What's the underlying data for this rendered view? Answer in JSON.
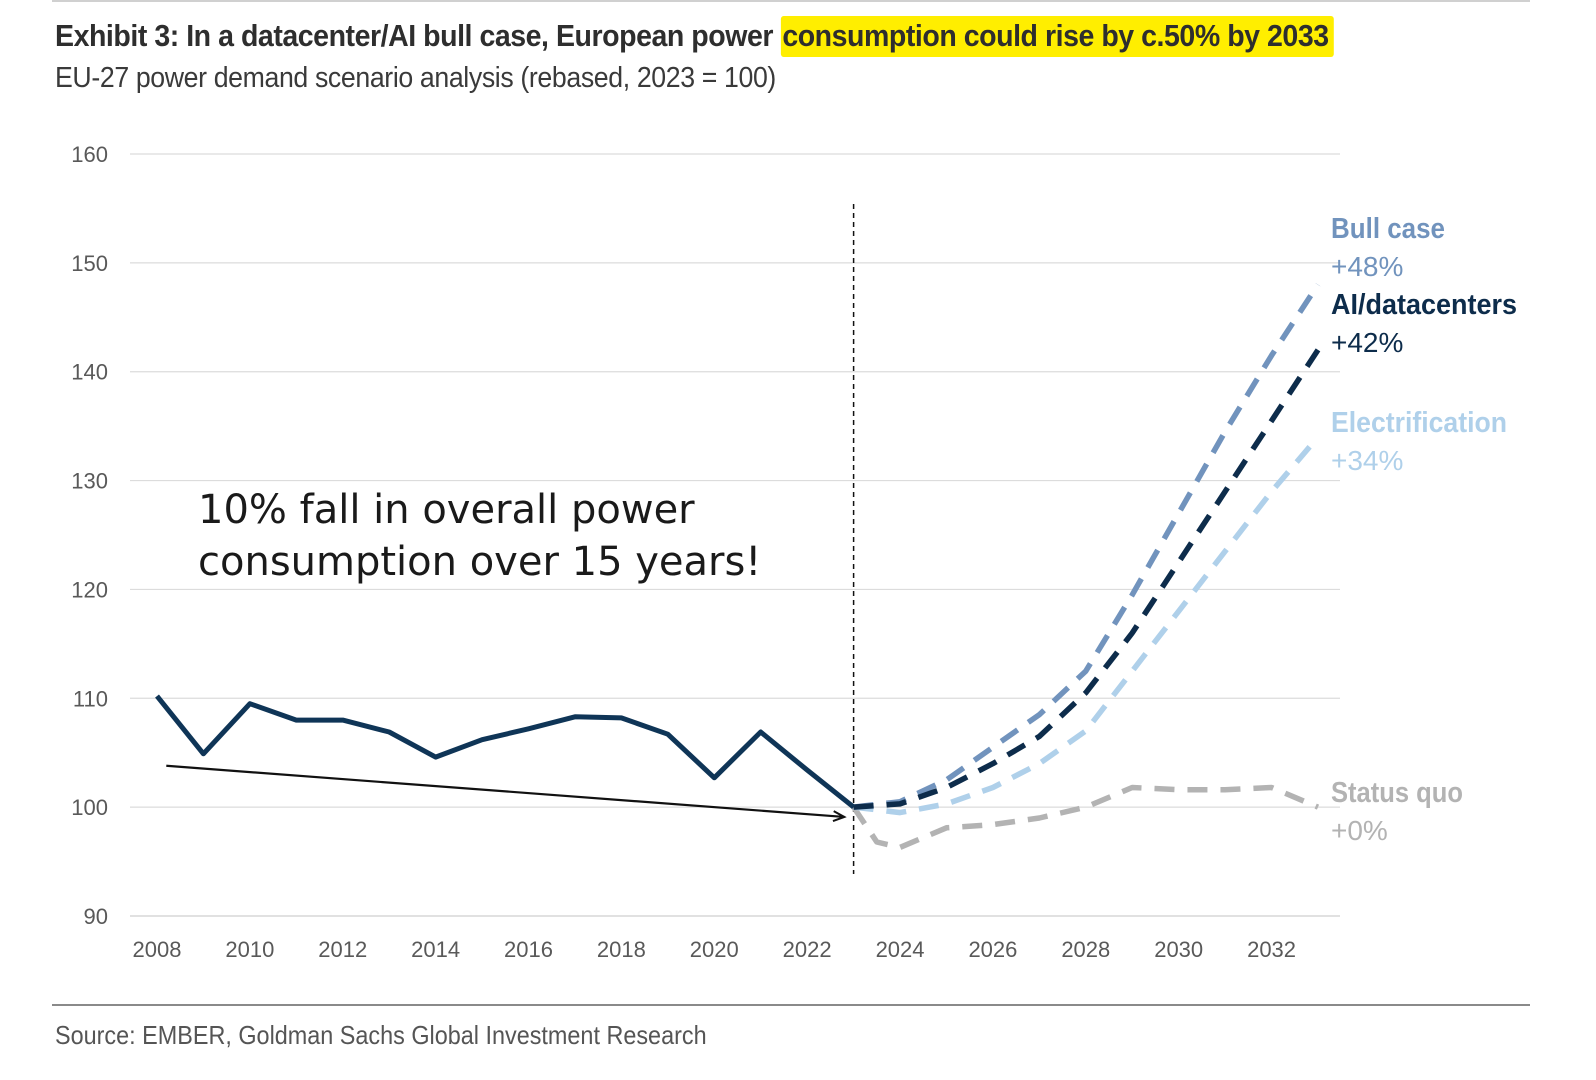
{
  "header": {
    "title_prefix": "Exhibit 3: In a datacenter/AI bull case, European power",
    "title_highlight": "consumption could rise by c.50% by 2033",
    "subtitle": "EU-27 power demand scenario analysis (rebased, 2023 = 100)"
  },
  "annotation": {
    "line1": "10% fall in overall power",
    "line2": "consumption over 15 years!"
  },
  "footer": {
    "source": "Source: EMBER, Goldman Sachs Global Investment Research"
  },
  "colors": {
    "historical": "#0f3557",
    "bull_case": "#7193bd",
    "ai_datacenters": "#0d2c4b",
    "electrification": "#afd0ea",
    "status_quo": "#b3b3b3",
    "highlight": "#ffee00"
  },
  "chart_data": {
    "type": "line",
    "xlim": [
      2008,
      2033
    ],
    "ylim": [
      90,
      160
    ],
    "xticks": [
      "2008",
      "2010",
      "2012",
      "2014",
      "2016",
      "2018",
      "2020",
      "2022",
      "2024",
      "2026",
      "2028",
      "2030",
      "2032"
    ],
    "yticks": [
      "90",
      "100",
      "110",
      "120",
      "130",
      "140",
      "150",
      "160"
    ],
    "grid": true,
    "divider_year": 2023,
    "series": [
      {
        "key": "historical",
        "style": "solid",
        "x": [
          2008,
          2009,
          2010,
          2011,
          2012,
          2013,
          2014,
          2015,
          2016,
          2017,
          2018,
          2019,
          2020,
          2021,
          2022,
          2023
        ],
        "values": [
          110.2,
          104.9,
          109.5,
          108.0,
          108.0,
          106.9,
          104.6,
          106.2,
          107.2,
          108.3,
          108.2,
          106.7,
          102.7,
          106.9,
          103.4,
          100.0
        ]
      },
      {
        "key": "bull_case",
        "name": "Bull case",
        "change": "+48%",
        "style": "dashed",
        "x": [
          2023,
          2024,
          2025,
          2026,
          2027,
          2028,
          2029,
          2030,
          2031,
          2032,
          2033
        ],
        "values": [
          100,
          100.5,
          102.5,
          105.5,
          108.5,
          112.5,
          119.5,
          127.0,
          134.5,
          141.5,
          148.0
        ]
      },
      {
        "key": "ai_datacenters",
        "name": "AI/datacenters",
        "change": "+42%",
        "style": "dashed",
        "x": [
          2023,
          2024,
          2025,
          2026,
          2027,
          2028,
          2029,
          2030,
          2031,
          2032,
          2033
        ],
        "values": [
          100,
          100.3,
          101.8,
          104.0,
          106.5,
          110.5,
          116.0,
          122.5,
          129.0,
          135.5,
          142.0
        ]
      },
      {
        "key": "electrification",
        "name": "Electrification",
        "change": "+34%",
        "style": "dashed",
        "x": [
          2023,
          2024,
          2025,
          2026,
          2027,
          2028,
          2029,
          2030,
          2031,
          2032,
          2033
        ],
        "values": [
          100,
          99.5,
          100.3,
          101.8,
          104.0,
          107.0,
          112.5,
          118.0,
          123.5,
          129.0,
          134.0
        ]
      },
      {
        "key": "status_quo",
        "name": "Status quo",
        "change": "+0%",
        "style": "dashed",
        "x": [
          2023,
          2023.5,
          2024,
          2025,
          2026,
          2027,
          2028,
          2029,
          2030,
          2031,
          2032,
          2033
        ],
        "values": [
          100,
          96.8,
          96.3,
          98.1,
          98.4,
          99.0,
          100.0,
          101.8,
          101.6,
          101.6,
          101.8,
          100.0
        ]
      }
    ],
    "trend_arrow": {
      "from": [
        2008.2,
        103.8
      ],
      "to": [
        2022.8,
        99.1
      ]
    }
  }
}
